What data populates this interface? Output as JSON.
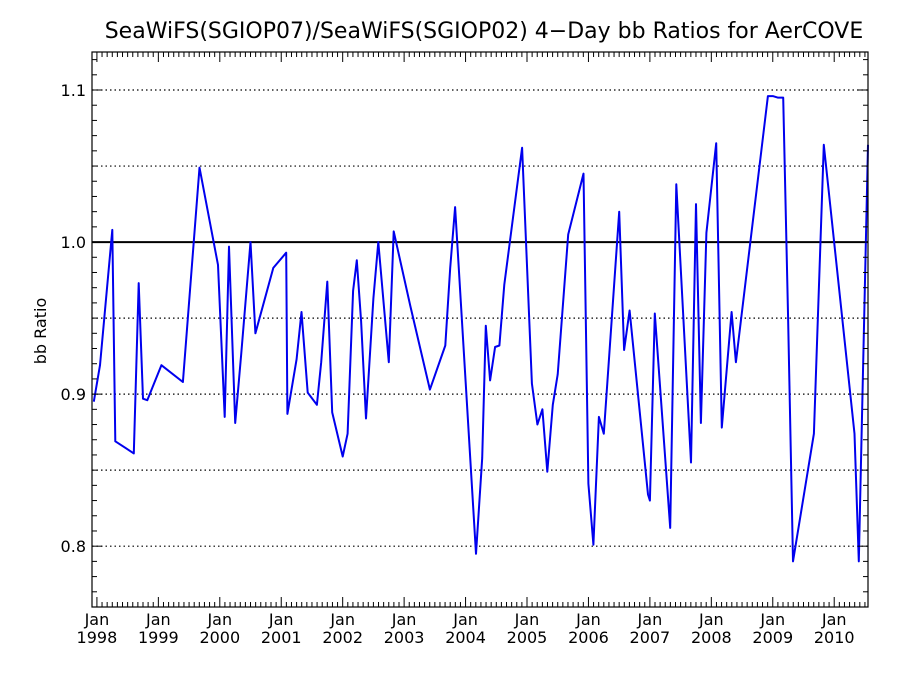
{
  "chart_data": {
    "type": "line",
    "title": "SeaWiFS(SGIOP07)/SeaWiFS(SGIOP02) 4−Day bb Ratios for AerCOVE",
    "xlabel": "",
    "ylabel": "bb Ratio",
    "xlim": [
      1997.92,
      2010.55
    ],
    "ylim": [
      0.76,
      1.125
    ],
    "grid": "dotted horizontal",
    "reference_line": 1.0,
    "line_color": "#0000ee",
    "y_ticks": [
      "0.8",
      "0.9",
      "1.0",
      "1.1"
    ],
    "y_tick_values": [
      0.8,
      0.9,
      1.0,
      1.1
    ],
    "y_grid_values": [
      0.8,
      0.85,
      0.9,
      0.95,
      1.05,
      1.1
    ],
    "x_ticks": [
      {
        "x": 1998,
        "month": "Jan",
        "year": "1998"
      },
      {
        "x": 1999,
        "month": "Jan",
        "year": "1999"
      },
      {
        "x": 2000,
        "month": "Jan",
        "year": "2000"
      },
      {
        "x": 2001,
        "month": "Jan",
        "year": "2001"
      },
      {
        "x": 2002,
        "month": "Jan",
        "year": "2002"
      },
      {
        "x": 2003,
        "month": "Jan",
        "year": "2003"
      },
      {
        "x": 2004,
        "month": "Jan",
        "year": "2004"
      },
      {
        "x": 2005,
        "month": "Jan",
        "year": "2005"
      },
      {
        "x": 2006,
        "month": "Jan",
        "year": "2006"
      },
      {
        "x": 2007,
        "month": "Jan",
        "year": "2007"
      },
      {
        "x": 2008,
        "month": "Jan",
        "year": "2008"
      },
      {
        "x": 2009,
        "month": "Jan",
        "year": "2009"
      },
      {
        "x": 2010,
        "month": "Jan",
        "year": "2010"
      }
    ],
    "series": [
      {
        "x": [
          1997.95,
          1998.05,
          1998.25,
          1998.3,
          1998.6,
          1998.68,
          1998.75,
          1998.82,
          1999.05,
          1999.4,
          1999.67,
          1999.97,
          2000.08,
          2000.15,
          2000.25,
          2000.35,
          2000.5,
          2000.58,
          2000.87,
          2001.08,
          2001.1,
          2001.25,
          2001.33,
          2001.43,
          2001.58,
          2001.65,
          2001.75,
          2001.83,
          2002.0,
          2002.08,
          2002.17,
          2002.23,
          2002.3,
          2002.38,
          2002.5,
          2002.58,
          2002.75,
          2002.83,
          2003.1,
          2003.42,
          2003.67,
          2003.75,
          2003.83,
          2004.17,
          2004.27,
          2004.33,
          2004.4,
          2004.48,
          2004.55,
          2004.63,
          2004.92,
          2005.08,
          2005.17,
          2005.25,
          2005.33,
          2005.42,
          2005.5,
          2005.67,
          2005.92,
          2006.0,
          2006.08,
          2006.17,
          2006.25,
          2006.5,
          2006.58,
          2006.67,
          2006.97,
          2007.0,
          2007.08,
          2007.33,
          2007.43,
          2007.67,
          2007.75,
          2007.83,
          2007.92,
          2008.08,
          2008.17,
          2008.33,
          2008.4,
          2008.92,
          2009.0,
          2009.08,
          2009.17,
          2009.25,
          2009.33,
          2009.67,
          2009.83,
          2010.33,
          2010.4,
          2010.55
        ],
        "values": [
          0.895,
          0.919,
          1.008,
          0.869,
          0.861,
          0.973,
          0.897,
          0.896,
          0.919,
          0.908,
          1.049,
          0.985,
          0.885,
          0.997,
          0.881,
          0.927,
          1.0,
          0.94,
          0.983,
          0.993,
          0.887,
          0.923,
          0.954,
          0.901,
          0.893,
          0.921,
          0.974,
          0.888,
          0.859,
          0.874,
          0.968,
          0.988,
          0.948,
          0.884,
          0.963,
          1.0,
          0.921,
          1.007,
          0.958,
          0.903,
          0.932,
          0.983,
          1.023,
          0.795,
          0.858,
          0.945,
          0.909,
          0.931,
          0.932,
          0.972,
          1.062,
          0.907,
          0.88,
          0.89,
          0.849,
          0.893,
          0.913,
          1.005,
          1.045,
          0.841,
          0.801,
          0.885,
          0.874,
          1.02,
          0.929,
          0.955,
          0.834,
          0.83,
          0.953,
          0.812,
          1.038,
          0.855,
          1.025,
          0.881,
          1.006,
          1.065,
          0.878,
          0.954,
          0.921,
          1.096,
          1.096,
          1.095,
          1.095,
          0.95,
          0.79,
          0.874,
          1.064,
          0.874,
          0.79,
          1.064
        ]
      }
    ]
  }
}
